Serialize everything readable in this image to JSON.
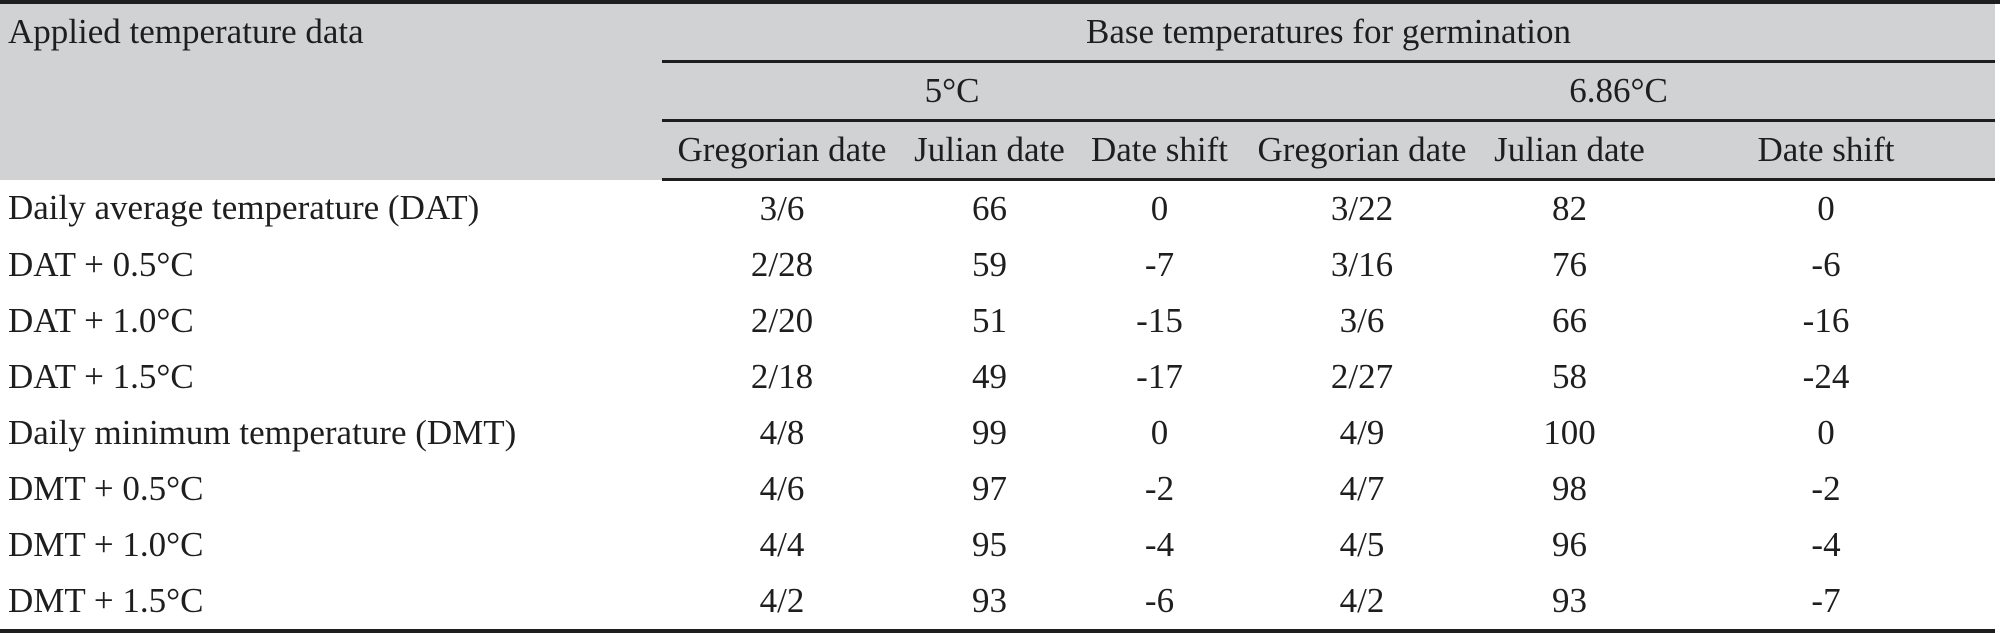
{
  "header": {
    "row_label": "Applied temperature data",
    "group_title": "Base temperatures for germination",
    "subgroups": [
      "5°C",
      "6.86°C"
    ],
    "columns": [
      "Gregorian date",
      "Julian date",
      "Date shift",
      "Gregorian date",
      "Julian date",
      "Date shift"
    ]
  },
  "rows": [
    {
      "label": "Daily average temperature (DAT)",
      "values": [
        "3/6",
        "66",
        "0",
        "3/22",
        "82",
        "0"
      ]
    },
    {
      "label": "DAT + 0.5°C",
      "values": [
        "2/28",
        "59",
        "-7",
        "3/16",
        "76",
        "-6"
      ]
    },
    {
      "label": "DAT + 1.0°C",
      "values": [
        "2/20",
        "51",
        "-15",
        "3/6",
        "66",
        "-16"
      ]
    },
    {
      "label": "DAT + 1.5°C",
      "values": [
        "2/18",
        "49",
        "-17",
        "2/27",
        "58",
        "-24"
      ]
    },
    {
      "label": "Daily minimum temperature (DMT)",
      "values": [
        "4/8",
        "99",
        "0",
        "4/9",
        "100",
        "0"
      ]
    },
    {
      "label": "DMT + 0.5°C",
      "values": [
        "4/6",
        "97",
        "-2",
        "4/7",
        "98",
        "-2"
      ]
    },
    {
      "label": "DMT + 1.0°C",
      "values": [
        "4/4",
        "95",
        "-4",
        "4/5",
        "96",
        "-4"
      ]
    },
    {
      "label": "DMT + 1.5°C",
      "values": [
        "4/2",
        "93",
        "-6",
        "4/2",
        "93",
        "-7"
      ]
    }
  ]
}
